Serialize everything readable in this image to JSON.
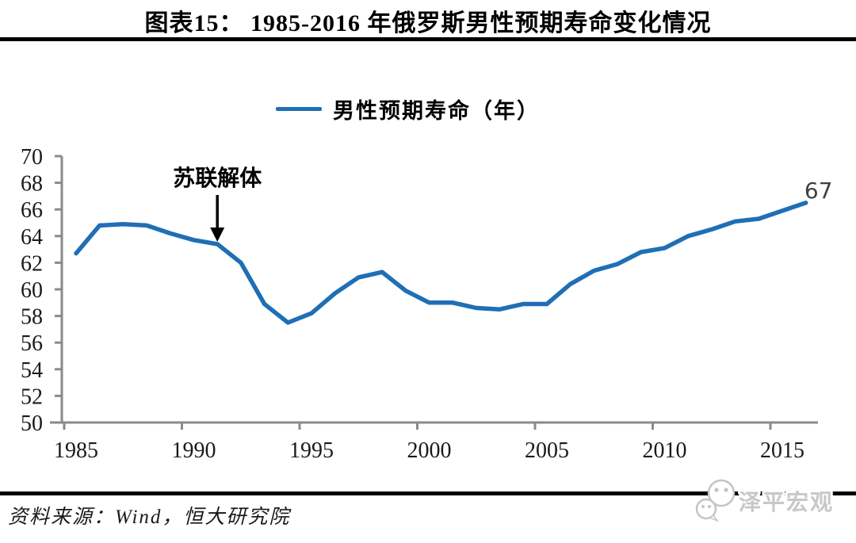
{
  "header": {
    "title": "图表15： 1985-2016 年俄罗斯男性预期寿命变化情况"
  },
  "legend": {
    "label": "男性预期寿命（年）"
  },
  "chart_data": {
    "type": "line",
    "title": "图表15： 1985-2016 年俄罗斯男性预期寿命变化情况",
    "xlabel": "",
    "ylabel": "",
    "xlim": [
      1985,
      2017
    ],
    "ylim": [
      50,
      70
    ],
    "grid": false,
    "legend_position": "top",
    "x_ticks": [
      1985,
      1990,
      1995,
      2000,
      2005,
      2010,
      2015
    ],
    "y_ticks": [
      50,
      52,
      54,
      56,
      58,
      60,
      62,
      64,
      66,
      68,
      70
    ],
    "series": [
      {
        "name": "男性预期寿命（年）",
        "x": [
          1985,
          1986,
          1987,
          1988,
          1989,
          1990,
          1991,
          1992,
          1993,
          1994,
          1995,
          1996,
          1997,
          1998,
          1999,
          2000,
          2001,
          2002,
          2003,
          2004,
          2005,
          2006,
          2007,
          2008,
          2009,
          2010,
          2011,
          2012,
          2013,
          2014,
          2015,
          2016
        ],
        "values": [
          62.7,
          64.8,
          64.9,
          64.8,
          64.2,
          63.7,
          63.4,
          62.0,
          58.9,
          57.5,
          58.2,
          59.7,
          60.9,
          61.3,
          59.9,
          59.0,
          59.0,
          58.6,
          58.5,
          58.9,
          58.9,
          60.4,
          61.4,
          61.9,
          62.8,
          63.1,
          64.0,
          64.5,
          65.1,
          65.3,
          65.9,
          66.5
        ]
      }
    ],
    "annotation": {
      "text": "苏联解体",
      "year": 1991,
      "value": 63.4
    },
    "end_label": {
      "text": "67",
      "year": 2016,
      "value": 66.5
    },
    "line_color": "#1F6FB5",
    "axis_color": "#8A8A8A",
    "tick_label_color": "#1a1a1a",
    "end_label_color": "#404040",
    "annotation_color": "#000000"
  },
  "footer": {
    "source": "资料来源：Wind，恒大研究院"
  },
  "watermark": {
    "text": "泽平宏观",
    "icon": "wechat-chat-bubbles-icon",
    "color": "#c8c8c8"
  }
}
